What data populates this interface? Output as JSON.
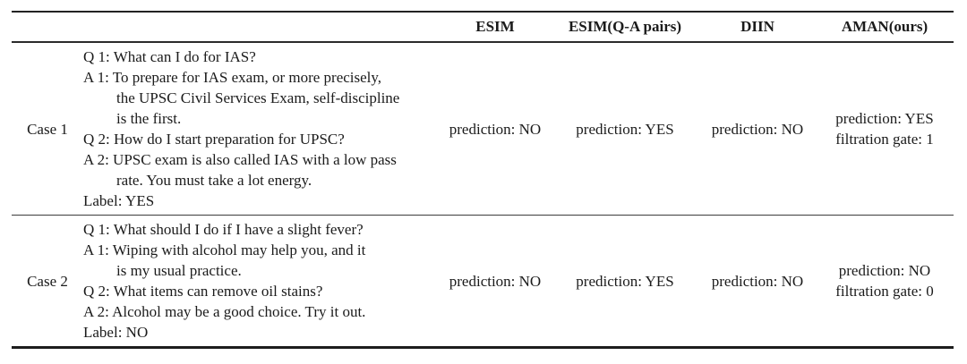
{
  "table": {
    "headers": [
      "ESIM",
      "ESIM(Q-A pairs)",
      "DIIN",
      "AMAN(ours)"
    ],
    "cases": [
      {
        "label": "Case 1",
        "lines": [
          {
            "text": "Q 1: What can I do for IAS?"
          },
          {
            "text": "A 1: To prepare for IAS exam, or more precisely,"
          },
          {
            "text": "the UPSC Civil Services Exam, self-discipline"
          },
          {
            "text": "is the first."
          },
          {
            "text": "Q 2: How do I start preparation for UPSC?"
          },
          {
            "text": "A 2: UPSC exam is also called IAS with a low pass"
          },
          {
            "text": "rate. You must take a lot energy."
          },
          {
            "text": "Label: YES"
          }
        ],
        "predictions": {
          "esim": "prediction: NO",
          "esim_qa": "prediction: YES",
          "diin": "prediction: NO",
          "aman": [
            "prediction: YES",
            "filtration gate: 1"
          ]
        }
      },
      {
        "label": "Case 2",
        "lines": [
          {
            "text": "Q 1: What should I do if I have a slight fever?"
          },
          {
            "text": "A 1: Wiping with alcohol may help you, and it"
          },
          {
            "text": "is my usual practice."
          },
          {
            "text": "Q 2: What items can remove oil stains?"
          },
          {
            "text": "A 2: Alcohol may be a good choice. Try it out."
          },
          {
            "text": "Label: NO"
          }
        ],
        "predictions": {
          "esim": "prediction: NO",
          "esim_qa": "prediction: YES",
          "diin": "prediction: NO",
          "aman": [
            "prediction: NO",
            "filtration gate: 0"
          ]
        }
      }
    ]
  },
  "colors": {
    "background": "#ffffff",
    "text": "#1b1b1b",
    "rule_heavy": "#222222",
    "rule_light": "#3c3c3c"
  }
}
